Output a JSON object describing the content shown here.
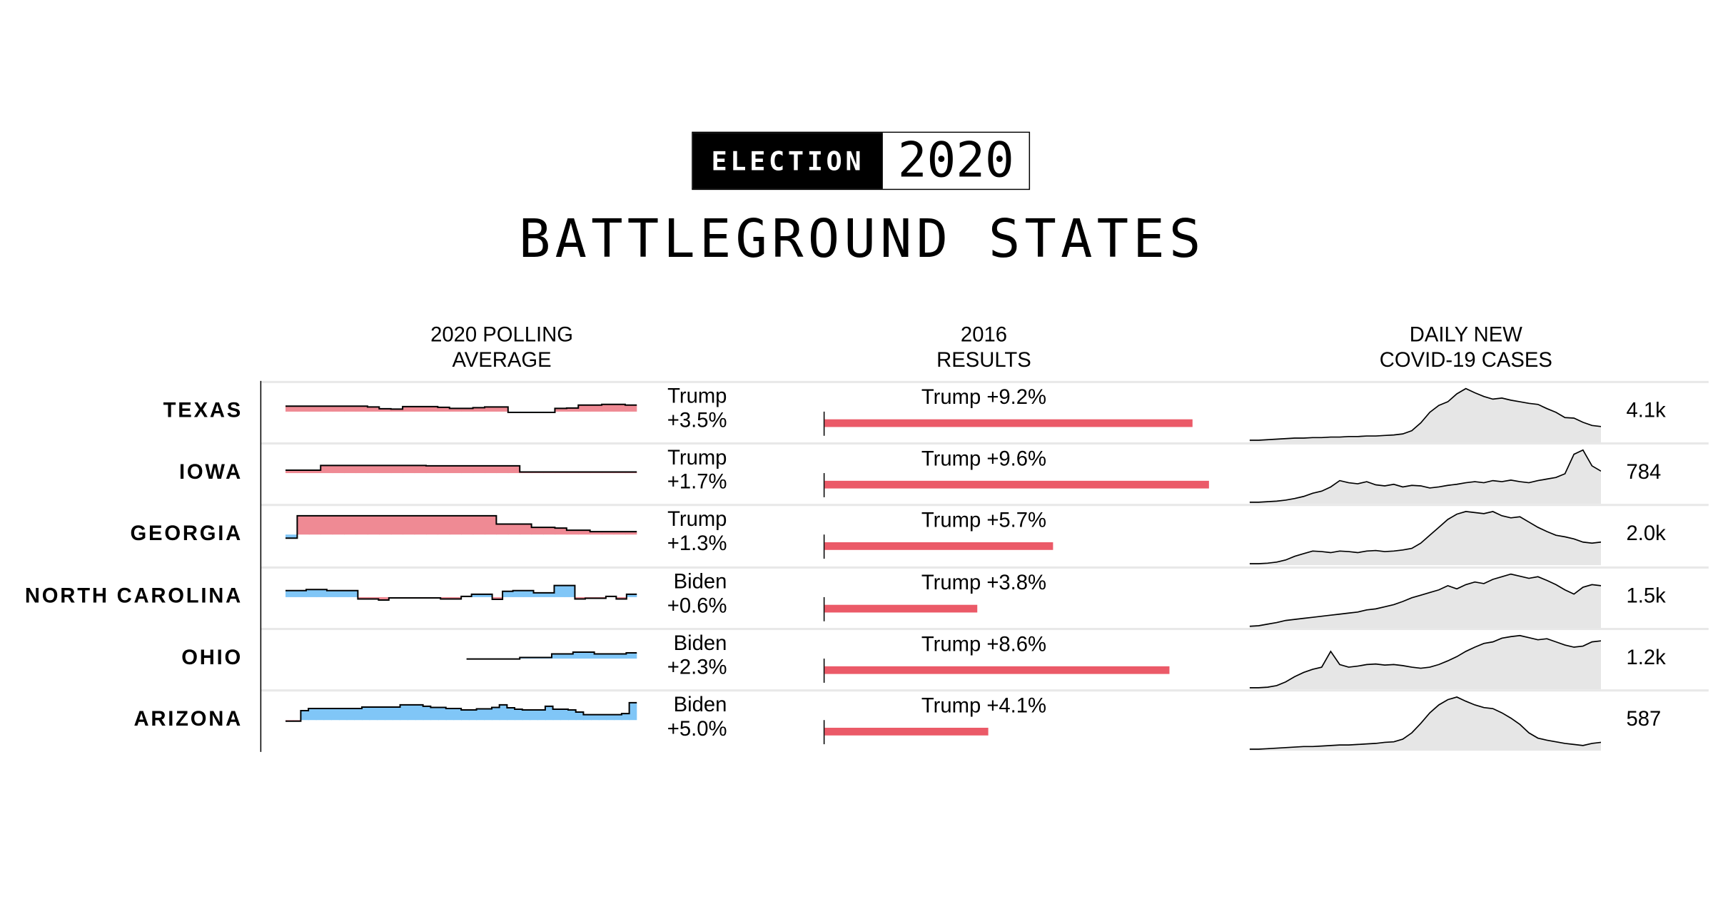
{
  "badge": {
    "left": "ELECTION",
    "right": "2020"
  },
  "title": "BATTLEGROUND STATES",
  "columns": {
    "polling": [
      "2020 POLLING",
      "AVERAGE"
    ],
    "results": [
      "2016",
      "RESULTS"
    ],
    "covid": [
      "DAILY NEW",
      "COVID-19 CASES"
    ]
  },
  "colors": {
    "trump": "#ef8a94",
    "biden": "#80c6f7",
    "bar": "#eb5a68",
    "covid_fill": "#e6e6e6"
  },
  "chart_data": {
    "type": "table",
    "title": "BATTLEGROUND STATES",
    "notes": "polling series: margin in points, positive = leader shown (Trump for red states, Biden for blue), null = no data; covid series: relative daily new cases (0-100)",
    "rows": [
      {
        "state": "TEXAS",
        "poll_leader": "Trump",
        "poll_margin": "+3.5%",
        "poll_sign": "trump",
        "polling": [
          1.5,
          1.5,
          1.5,
          1.5,
          1.5,
          1.5,
          1.5,
          1.3,
          0.8,
          0.7,
          1.4,
          1.4,
          1.4,
          1.2,
          0.9,
          0.9,
          1.1,
          1.3,
          1.3,
          -0.2,
          -0.2,
          -0.2,
          -0.2,
          0.9,
          1.0,
          1.8,
          1.8,
          2.0,
          2.0,
          1.8
        ],
        "result_2016": "Trump +9.2%",
        "result_value": 9.2,
        "covid": [
          2,
          2,
          3,
          4,
          5,
          6,
          6,
          7,
          7,
          8,
          8,
          9,
          9,
          10,
          10,
          11,
          12,
          14,
          20,
          35,
          55,
          68,
          75,
          90,
          100,
          92,
          85,
          80,
          82,
          78,
          75,
          72,
          70,
          62,
          55,
          45,
          44,
          36,
          30,
          28
        ],
        "covid_latest": "4.1k"
      },
      {
        "state": "IOWA",
        "poll_leader": "Trump",
        "poll_margin": "+1.7%",
        "poll_sign": "trump",
        "polling": [
          0.8,
          0.8,
          0.8,
          2.1,
          2.1,
          2.1,
          2.1,
          2.1,
          2.1,
          2.1,
          2.1,
          2.1,
          2.0,
          2.0,
          2.0,
          2.0,
          2.0,
          2.0,
          2.0,
          2.0,
          0.3,
          0.3,
          0.3,
          0.3,
          0.3,
          0.3,
          0.3,
          0.3,
          0.3,
          0.3
        ],
        "result_2016": "Trump +9.6%",
        "result_value": 9.6,
        "covid": [
          1,
          1,
          2,
          3,
          5,
          8,
          12,
          18,
          22,
          30,
          42,
          38,
          36,
          40,
          34,
          32,
          35,
          30,
          33,
          32,
          28,
          30,
          33,
          35,
          38,
          40,
          38,
          42,
          40,
          43,
          40,
          38,
          42,
          45,
          48,
          55,
          92,
          100,
          70,
          60
        ],
        "covid_latest": "784"
      },
      {
        "state": "GEORGIA",
        "poll_leader": "Trump",
        "poll_margin": "+1.3%",
        "poll_sign": "trump",
        "polling": [
          -1.0,
          5.2,
          5.2,
          5.2,
          5.2,
          5.2,
          5.2,
          5.2,
          5.2,
          5.2,
          5.2,
          5.2,
          5.2,
          5.2,
          5.2,
          5.2,
          5.2,
          5.2,
          2.9,
          2.9,
          2.9,
          2.0,
          2.0,
          1.8,
          1.2,
          1.2,
          0.8,
          0.8,
          0.8,
          0.8
        ],
        "result_2016": "Trump +5.7%",
        "result_value": 5.7,
        "covid": [
          1,
          1,
          2,
          4,
          8,
          15,
          20,
          25,
          24,
          22,
          25,
          24,
          22,
          25,
          26,
          24,
          25,
          27,
          30,
          40,
          55,
          70,
          85,
          95,
          100,
          98,
          96,
          100,
          92,
          88,
          90,
          80,
          70,
          62,
          55,
          52,
          48,
          42,
          40,
          42
        ],
        "covid_latest": "2.0k"
      },
      {
        "state": "NORTH CAROLINA",
        "poll_leader": "Biden",
        "poll_margin": "+0.6%",
        "poll_sign": "biden",
        "polling": [
          1.8,
          1.8,
          2.1,
          2.1,
          1.8,
          1.8,
          1.8,
          -0.5,
          -0.5,
          -0.8,
          -0.2,
          -0.2,
          -0.2,
          -0.2,
          -0.2,
          -0.5,
          -0.5,
          0.2,
          0.8,
          0.8,
          -0.6,
          1.6,
          1.8,
          1.8,
          1.2,
          1.2,
          3.2,
          3.2,
          -0.5,
          -0.3,
          -0.3,
          0.2,
          -0.5,
          0.8
        ],
        "result_2016": "Trump +3.8%",
        "result_value": 3.8,
        "covid": [
          1,
          2,
          5,
          8,
          12,
          14,
          16,
          18,
          20,
          22,
          24,
          26,
          28,
          32,
          34,
          38,
          42,
          48,
          55,
          60,
          65,
          70,
          78,
          72,
          80,
          85,
          82,
          90,
          95,
          100,
          96,
          92,
          95,
          88,
          80,
          70,
          62,
          75,
          80,
          78
        ],
        "covid_latest": "1.5k"
      },
      {
        "state": "OHIO",
        "poll_leader": "Biden",
        "poll_margin": "+2.3%",
        "poll_sign": "biden",
        "polling": [
          null,
          null,
          null,
          null,
          null,
          null,
          null,
          null,
          null,
          null,
          null,
          null,
          null,
          null,
          null,
          null,
          null,
          -0.1,
          -0.1,
          -0.1,
          -0.1,
          -0.1,
          0.3,
          0.3,
          0.3,
          1.3,
          1.3,
          1.8,
          1.8,
          1.3,
          1.3,
          1.3,
          1.6
        ],
        "result_2016": "Trump +8.6%",
        "result_value": 8.6,
        "covid": [
          1,
          1,
          2,
          5,
          12,
          22,
          30,
          36,
          40,
          70,
          45,
          40,
          42,
          45,
          46,
          44,
          45,
          43,
          40,
          38,
          40,
          45,
          52,
          60,
          70,
          78,
          85,
          88,
          95,
          98,
          100,
          96,
          92,
          94,
          88,
          82,
          78,
          80,
          88,
          90
        ],
        "covid_latest": "1.2k"
      },
      {
        "state": "ARIZONA",
        "poll_leader": "Biden",
        "poll_margin": "+5.0%",
        "poll_sign": "biden",
        "polling": [
          -0.3,
          -0.3,
          2.6,
          3.2,
          3.2,
          3.2,
          3.2,
          3.2,
          3.2,
          3.2,
          3.6,
          3.6,
          3.6,
          3.6,
          3.6,
          4.2,
          4.2,
          4.2,
          3.8,
          3.5,
          3.5,
          3.2,
          3.2,
          2.8,
          2.8,
          3.1,
          3.1,
          3.5,
          4.2,
          3.4,
          3.0,
          2.8,
          2.8,
          2.8,
          3.8,
          3.0,
          3.0,
          2.8,
          2.2,
          1.5,
          1.5,
          1.5,
          1.5,
          1.5,
          1.8,
          4.8
        ],
        "result_2016": "Trump +4.1%",
        "result_value": 4.1,
        "covid": [
          1,
          1,
          2,
          3,
          4,
          5,
          6,
          6,
          7,
          8,
          9,
          9,
          10,
          11,
          12,
          14,
          15,
          20,
          32,
          50,
          70,
          85,
          95,
          100,
          92,
          85,
          80,
          78,
          70,
          60,
          48,
          32,
          22,
          18,
          15,
          12,
          10,
          8,
          12,
          14
        ],
        "covid_latest": "587"
      }
    ],
    "result_scale_max": 9.6
  }
}
